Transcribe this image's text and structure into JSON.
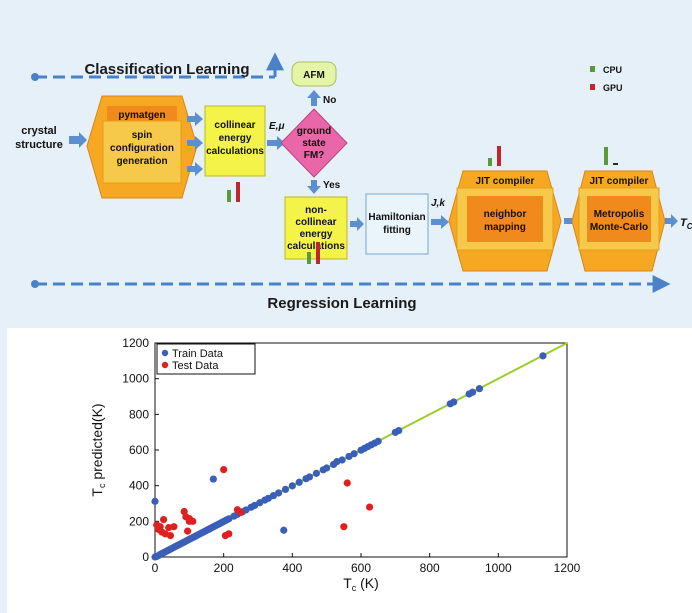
{
  "diagram": {
    "classification_label": "Classification Learning",
    "regression_label": "Regression Learning",
    "crystal_structure": [
      "crystal",
      "structure"
    ],
    "pymatgen_title": "pymatgen",
    "pymatgen_body": [
      "spin",
      "configuration",
      "generation"
    ],
    "collinear": [
      "collinear",
      "energy",
      "calculations"
    ],
    "e_mu": "E,μ",
    "ground_state": [
      "ground",
      "state",
      "FM?"
    ],
    "afm": "AFM",
    "no": "No",
    "yes": "Yes",
    "noncollinear": [
      "non-",
      "collinear",
      "energy",
      "calculations"
    ],
    "hamiltonian": [
      "Hamiltonian",
      "fitting"
    ],
    "jk": "J,k",
    "jit1_title": "JIT compiler",
    "jit1_body": [
      "neighbor",
      "mapping"
    ],
    "jit2_title": "JIT compiler",
    "jit2_body": [
      "Metropolis",
      "Monte-Carlo"
    ],
    "tc_output": "T",
    "tc_output_sub": "C",
    "legend": [
      {
        "label": "CPU",
        "color": "#5a9a3a"
      },
      {
        "label": "GPU",
        "color": "#c0272d"
      }
    ],
    "colors": {
      "hexagon": "#f7a823",
      "hexagon_inner": "#f08a1c",
      "yellow_box": "#f4f34a",
      "diamond": "#e966a8",
      "afm_box": "#e4f5a8",
      "hamiltonian_box": "#eaf5fb",
      "arrow": "#5b8fd0",
      "dashed": "#4a82c8"
    }
  },
  "chart_data": {
    "type": "scatter",
    "xlabel": "T_c (K)",
    "ylabel": "T_c predicted(K)",
    "xlim": [
      0,
      1200
    ],
    "ylim": [
      0,
      1200
    ],
    "xticks": [
      "0",
      "200",
      "400",
      "600",
      "800",
      "1000",
      "1200"
    ],
    "yticks": [
      "0",
      "200",
      "400",
      "600",
      "800",
      "1000",
      "1200"
    ],
    "legend_position": "top-left",
    "fit_line_color": "#9ccc2e",
    "series": [
      {
        "name": "Train Data",
        "color": "#3a5fb8",
        "points": [
          [
            0,
            0
          ],
          [
            5,
            3
          ],
          [
            10,
            8
          ],
          [
            15,
            14
          ],
          [
            20,
            19
          ],
          [
            25,
            24
          ],
          [
            30,
            29
          ],
          [
            35,
            34
          ],
          [
            40,
            39
          ],
          [
            45,
            44
          ],
          [
            50,
            49
          ],
          [
            55,
            54
          ],
          [
            60,
            59
          ],
          [
            65,
            64
          ],
          [
            70,
            69
          ],
          [
            75,
            74
          ],
          [
            80,
            79
          ],
          [
            85,
            84
          ],
          [
            90,
            89
          ],
          [
            95,
            94
          ],
          [
            100,
            99
          ],
          [
            105,
            104
          ],
          [
            110,
            109
          ],
          [
            115,
            114
          ],
          [
            120,
            119
          ],
          [
            125,
            124
          ],
          [
            130,
            129
          ],
          [
            135,
            134
          ],
          [
            140,
            139
          ],
          [
            145,
            144
          ],
          [
            150,
            149
          ],
          [
            155,
            154
          ],
          [
            160,
            159
          ],
          [
            165,
            164
          ],
          [
            170,
            169
          ],
          [
            175,
            174
          ],
          [
            180,
            179
          ],
          [
            185,
            184
          ],
          [
            190,
            189
          ],
          [
            195,
            194
          ],
          [
            200,
            199
          ],
          [
            205,
            204
          ],
          [
            210,
            209
          ],
          [
            215,
            214
          ],
          [
            230,
            229
          ],
          [
            240,
            239
          ],
          [
            255,
            254
          ],
          [
            265,
            264
          ],
          [
            280,
            279
          ],
          [
            290,
            289
          ],
          [
            305,
            304
          ],
          [
            320,
            319
          ],
          [
            330,
            329
          ],
          [
            345,
            344
          ],
          [
            360,
            359
          ],
          [
            380,
            379
          ],
          [
            400,
            399
          ],
          [
            420,
            419
          ],
          [
            440,
            439
          ],
          [
            450,
            449
          ],
          [
            470,
            469
          ],
          [
            490,
            489
          ],
          [
            500,
            499
          ],
          [
            520,
            519
          ],
          [
            545,
            544
          ],
          [
            565,
            564
          ],
          [
            580,
            579
          ],
          [
            600,
            599
          ],
          [
            610,
            609
          ],
          [
            620,
            619
          ],
          [
            630,
            629
          ],
          [
            640,
            639
          ],
          [
            650,
            649
          ],
          [
            700,
            699
          ],
          [
            710,
            709
          ],
          [
            860,
            859
          ],
          [
            870,
            869
          ],
          [
            915,
            914
          ],
          [
            925,
            924
          ],
          [
            945,
            944
          ],
          [
            1130,
            1128
          ],
          [
            0,
            312
          ],
          [
            170,
            437
          ],
          [
            375,
            150
          ],
          [
            530,
            535
          ]
        ]
      },
      {
        "name": "Test Data",
        "color": "#e02020",
        "points": [
          [
            5,
            180
          ],
          [
            10,
            155
          ],
          [
            15,
            170
          ],
          [
            20,
            140
          ],
          [
            25,
            210
          ],
          [
            30,
            130
          ],
          [
            40,
            165
          ],
          [
            45,
            120
          ],
          [
            55,
            170
          ],
          [
            85,
            255
          ],
          [
            90,
            225
          ],
          [
            100,
            215
          ],
          [
            100,
            200
          ],
          [
            95,
            145
          ],
          [
            110,
            200
          ],
          [
            200,
            490
          ],
          [
            205,
            120
          ],
          [
            215,
            130
          ],
          [
            240,
            265
          ],
          [
            250,
            250
          ],
          [
            550,
            170
          ],
          [
            560,
            415
          ],
          [
            625,
            280
          ]
        ]
      }
    ]
  }
}
